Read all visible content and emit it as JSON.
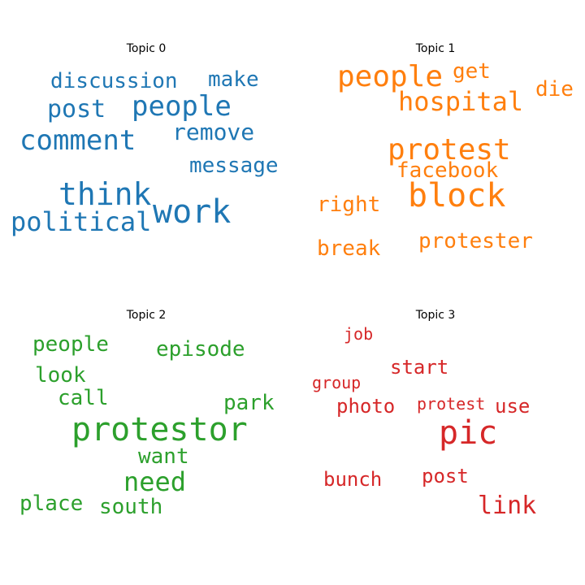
{
  "chart_data": [
    {
      "type": "wordcloud",
      "title": "Topic 0",
      "color": "#1f77b4",
      "words": [
        "discussion",
        "make",
        "post",
        "people",
        "comment",
        "remove",
        "message",
        "think",
        "work",
        "political"
      ]
    },
    {
      "type": "wordcloud",
      "title": "Topic 1",
      "color": "#ff7f0e",
      "words": [
        "people",
        "get",
        "die",
        "hospital",
        "protest",
        "facebook",
        "block",
        "right",
        "break",
        "protester"
      ]
    },
    {
      "type": "wordcloud",
      "title": "Topic 2",
      "color": "#2ca02c",
      "words": [
        "people",
        "episode",
        "look",
        "call",
        "park",
        "protestor",
        "want",
        "need",
        "place",
        "south"
      ]
    },
    {
      "type": "wordcloud",
      "title": "Topic 3",
      "color": "#d62728",
      "words": [
        "job",
        "start",
        "group",
        "photo",
        "protest",
        "use",
        "pic",
        "bunch",
        "post",
        "link"
      ]
    }
  ]
}
